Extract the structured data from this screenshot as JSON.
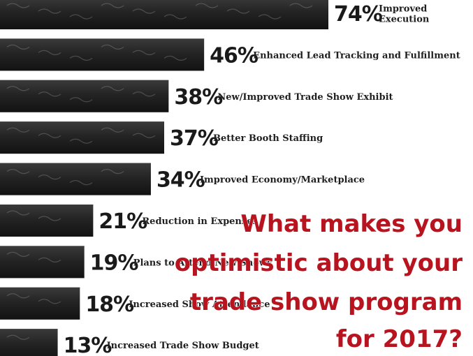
{
  "chart_data": {
    "type": "bar",
    "orientation": "horizontal",
    "title_lines": [
      "What makes you",
      "optimistic about your",
      "trade show program",
      "for 2017?"
    ],
    "categories": [
      "Improved Execution",
      "Enhanced Lead Tracking and Fulfillment",
      "New/Improved Trade Show Exhibit",
      "Better Booth Staffing",
      "Improved Economy/Marketplace",
      "Reduction in Expenses",
      "Plans to Attend New Shows",
      "Increased Show Attendance",
      "Increased Trade Show Budget"
    ],
    "category_label_lines": [
      [
        "Improved",
        "Execution"
      ],
      [
        "Enhanced Lead Tracking and Fulfillment"
      ],
      [
        "New/Improved Trade Show Exhibit"
      ],
      [
        "Better Booth Staffing"
      ],
      [
        "Improved Economy/Marketplace"
      ],
      [
        "Reduction in Expenses"
      ],
      [
        "Plans to Attend New Shows"
      ],
      [
        "Increased Show Attendance"
      ],
      [
        "Increased Trade Show Budget"
      ]
    ],
    "values": [
      74,
      46,
      38,
      37,
      34,
      21,
      19,
      18,
      13
    ],
    "value_labels": [
      "74%",
      "46%",
      "38%",
      "37%",
      "34%",
      "21%",
      "19%",
      "18%",
      "13%"
    ],
    "xlim": [
      0,
      100
    ],
    "grid": false,
    "legend": "none",
    "colors": {
      "bar": "#1c1c1c",
      "bar_highlight": "#3a3a3a",
      "chalk": "#9a9a9a",
      "text": "#1a1a1a",
      "title": "#b8141f",
      "background": "#ffffff"
    }
  }
}
